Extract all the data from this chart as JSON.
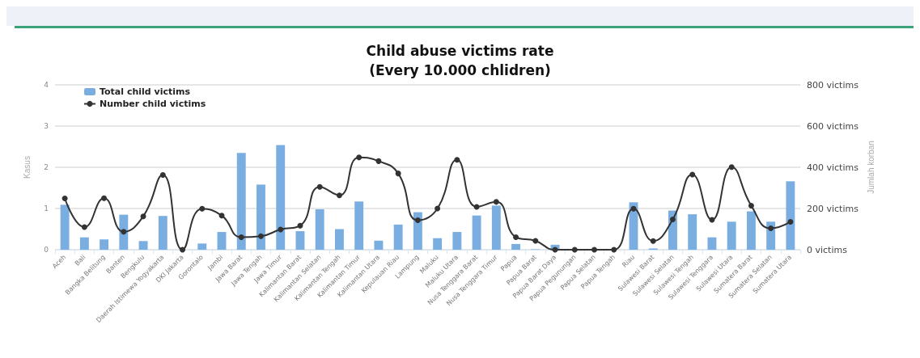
{
  "chart_data": {
    "type": "bar",
    "title": "Child abuse victims rate\n(Every 10.000 chlidren)",
    "ylabel": "Kasus",
    "y2label": "Jumlah korban",
    "categories": [
      "Aceh",
      "Bali",
      "Bangka Belitung",
      "Banten",
      "Bengkulu",
      "Daerah Istimewa Yogyakarta",
      "DKI Jakarta",
      "Gorontalo",
      "Jambi",
      "Jawa Barat",
      "Jawa Tengah",
      "Jawa Timur",
      "Kalimantan Barat",
      "Kalimantan Selatan",
      "Kalimantan Tengah",
      "Kalimantan Timur",
      "Kalimantan Utara",
      "Kepulauan Riau",
      "Lampung",
      "Maluku",
      "Maluku Utara",
      "Nusa Tenggara Barat",
      "Nusa Tenggara Timur",
      "Papua",
      "Papua Barat",
      "Papua Barat Daya",
      "Papua Pegunungan",
      "Papua Selatan",
      "Papua Tengah",
      "Riau",
      "Sulawesi Barat",
      "Sulawesi Selatan",
      "Sulawesi Tengah",
      "Sulawesi Tenggara",
      "Sulawesi Utara",
      "Sumatera Barat",
      "Sumatera Selatan",
      "Sumatera Utara"
    ],
    "series": [
      {
        "name": "Total child victims",
        "color": "#7aaee0",
        "values": [
          1.09,
          0.3,
          0.25,
          0.85,
          0.21,
          0.82,
          0,
          0.15,
          0.43,
          2.35,
          1.58,
          2.54,
          0.45,
          0.98,
          0.5,
          1.17,
          0.22,
          0.61,
          0.91,
          0.28,
          0.43,
          0.83,
          1.07,
          0.14,
          0.01,
          0.12,
          0,
          0,
          0,
          1.15,
          0.03,
          0.95,
          0.86,
          0.3,
          0.68,
          0.93,
          0.68,
          1.66
        ]
      },
      {
        "name": "Number child victims",
        "type": "line",
        "axis": "y2",
        "color": "#333333",
        "marker": "circle",
        "values": [
          249,
          110,
          250,
          87,
          162,
          363,
          0,
          199,
          166,
          61,
          66,
          98,
          117,
          305,
          264,
          448,
          430,
          370,
          143,
          200,
          436,
          208,
          232,
          61,
          43,
          0,
          0,
          0,
          0,
          199,
          42,
          147,
          365,
          145,
          401,
          214,
          104,
          135
        ]
      }
    ],
    "ylim": [
      0,
      4
    ],
    "yticks": [
      0,
      1,
      2,
      3,
      4
    ],
    "y2lim": [
      0,
      800
    ],
    "y2ticks": [
      {
        "value": 0,
        "label": "0 victims"
      },
      {
        "value": 200,
        "label": "200 victims"
      },
      {
        "value": 400,
        "label": "400 victims"
      },
      {
        "value": 600,
        "label": "600 victims"
      },
      {
        "value": 800,
        "label": "800 victims"
      }
    ],
    "grid": "y",
    "legend": "top left"
  }
}
